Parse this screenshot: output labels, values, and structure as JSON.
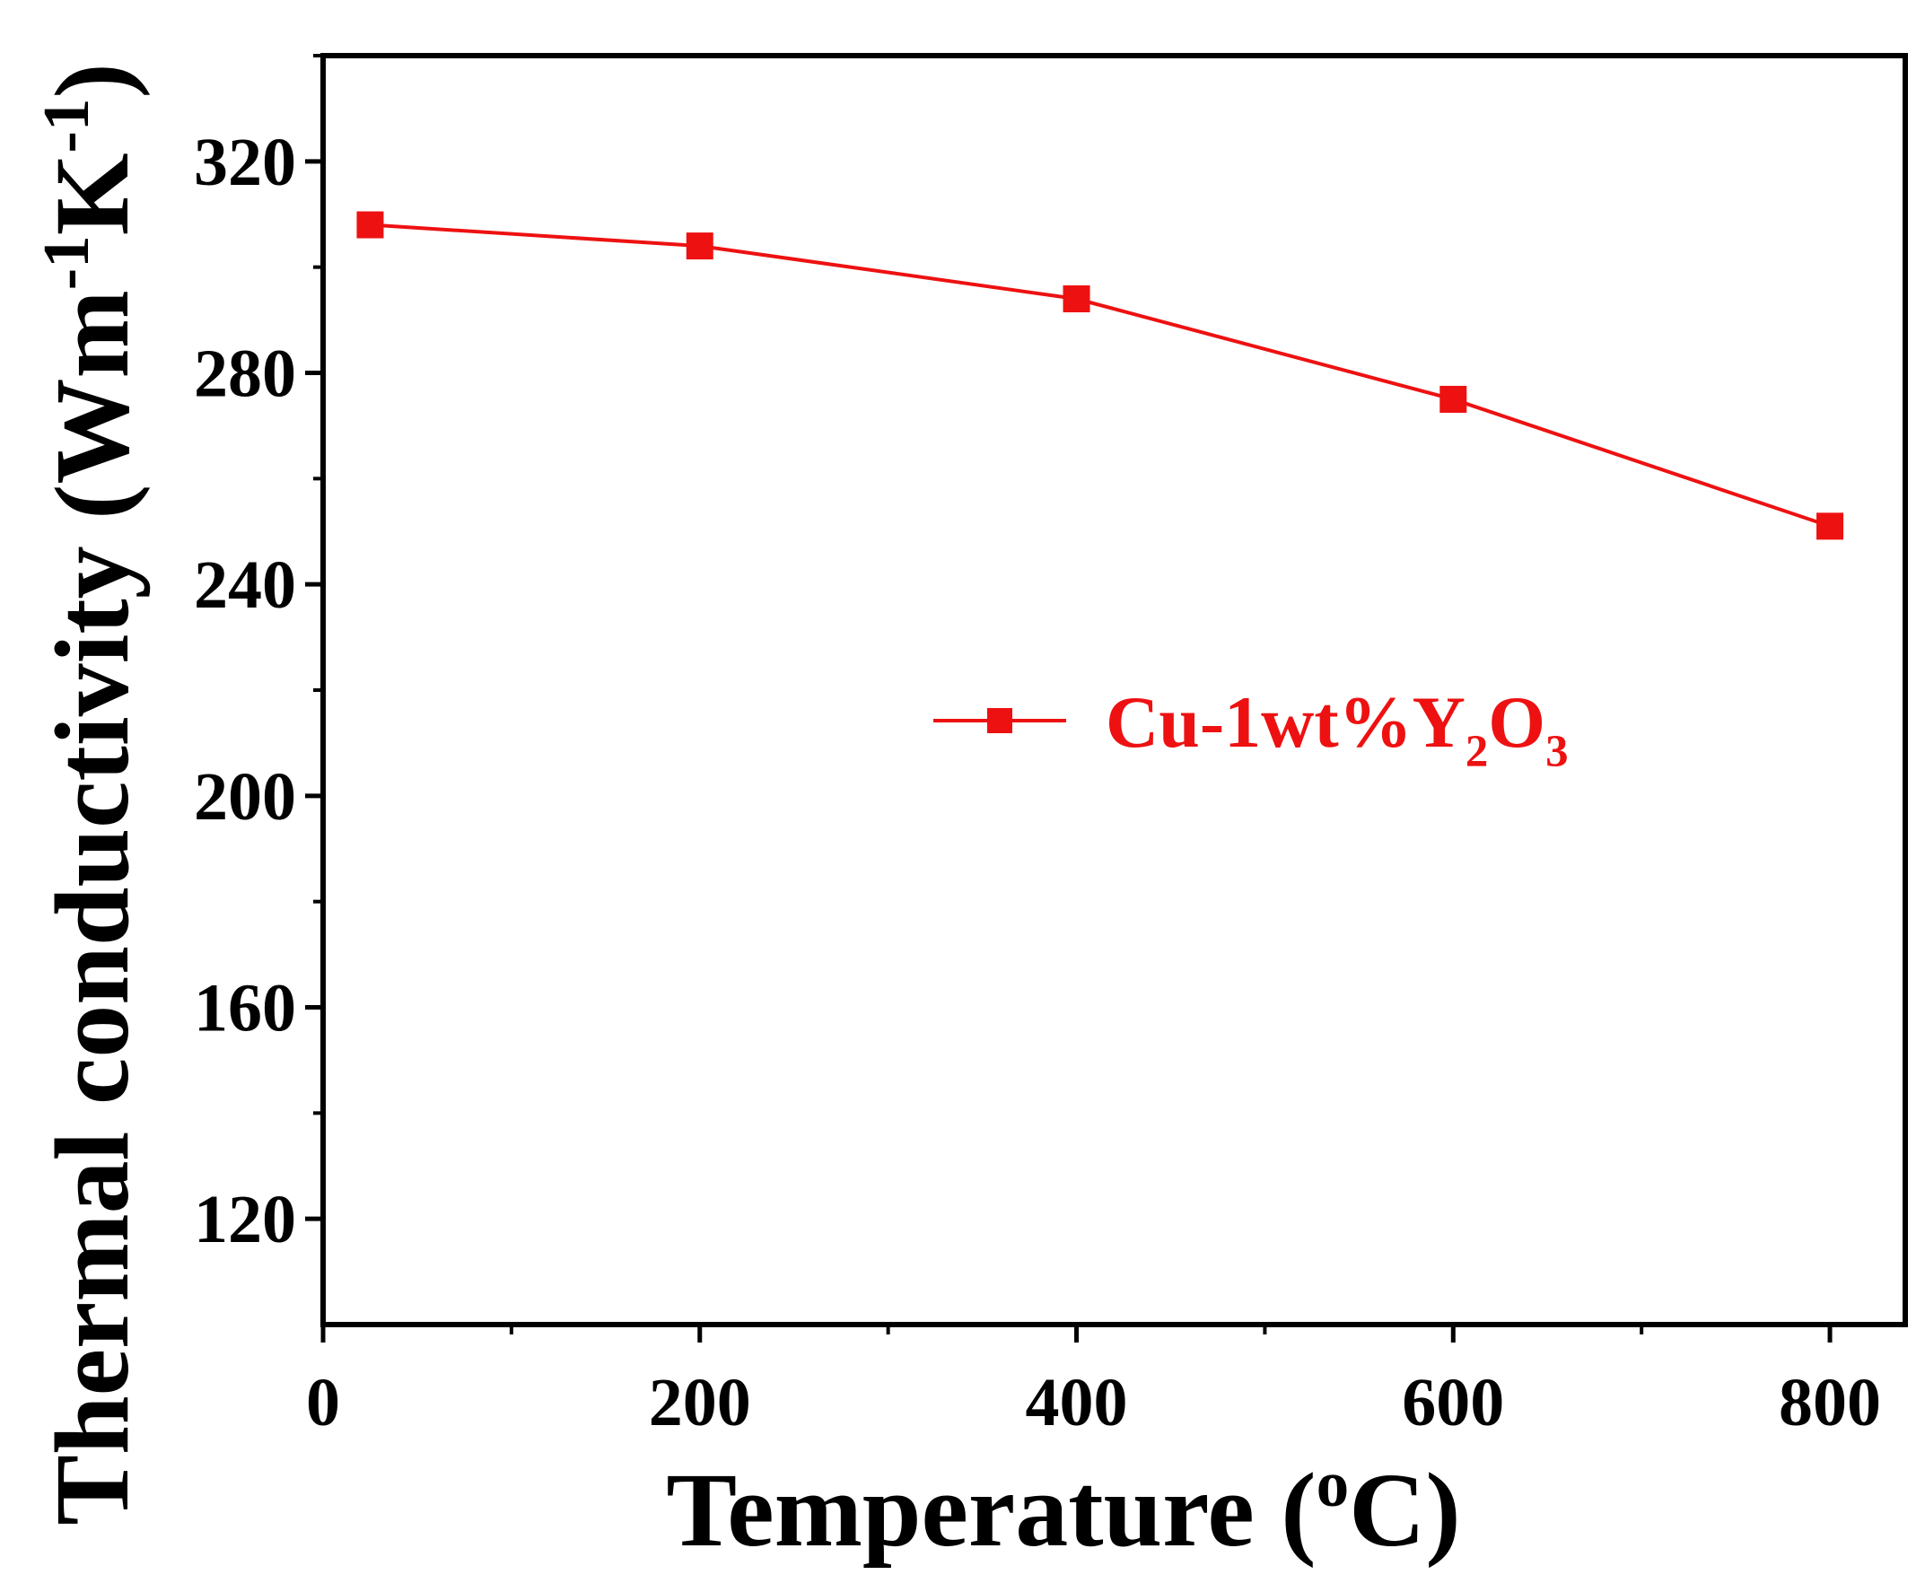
{
  "chart_data": {
    "type": "line",
    "title": "",
    "xlabel": {
      "main": "Temperature (",
      "sup": "o",
      "tail": "C)"
    },
    "ylabel": {
      "main": "Thermal conductivity (Wm",
      "sup1": "-1",
      "mid": "K",
      "sup2": "-1",
      "tail": ")"
    },
    "xlim": [
      0,
      840
    ],
    "ylim": [
      100,
      340
    ],
    "xticks": [
      0,
      200,
      400,
      600,
      800
    ],
    "yticks": [
      120,
      160,
      200,
      240,
      280,
      320
    ],
    "xticks_minor": [
      100,
      300,
      500,
      700
    ],
    "yticks_minor": [
      140,
      180,
      220,
      260,
      300,
      340
    ],
    "grid": false,
    "legend_position": "center-right",
    "series": [
      {
        "name": "Cu-1wt%Y2O3",
        "label_parts": {
          "a": "Cu-1wt%Y",
          "s1": "2",
          "b": "O",
          "s2": "3"
        },
        "color": "#ee1111",
        "marker": "square",
        "x": [
          25,
          200,
          400,
          600,
          800
        ],
        "y": [
          308,
          304,
          294,
          275,
          251
        ]
      }
    ]
  }
}
